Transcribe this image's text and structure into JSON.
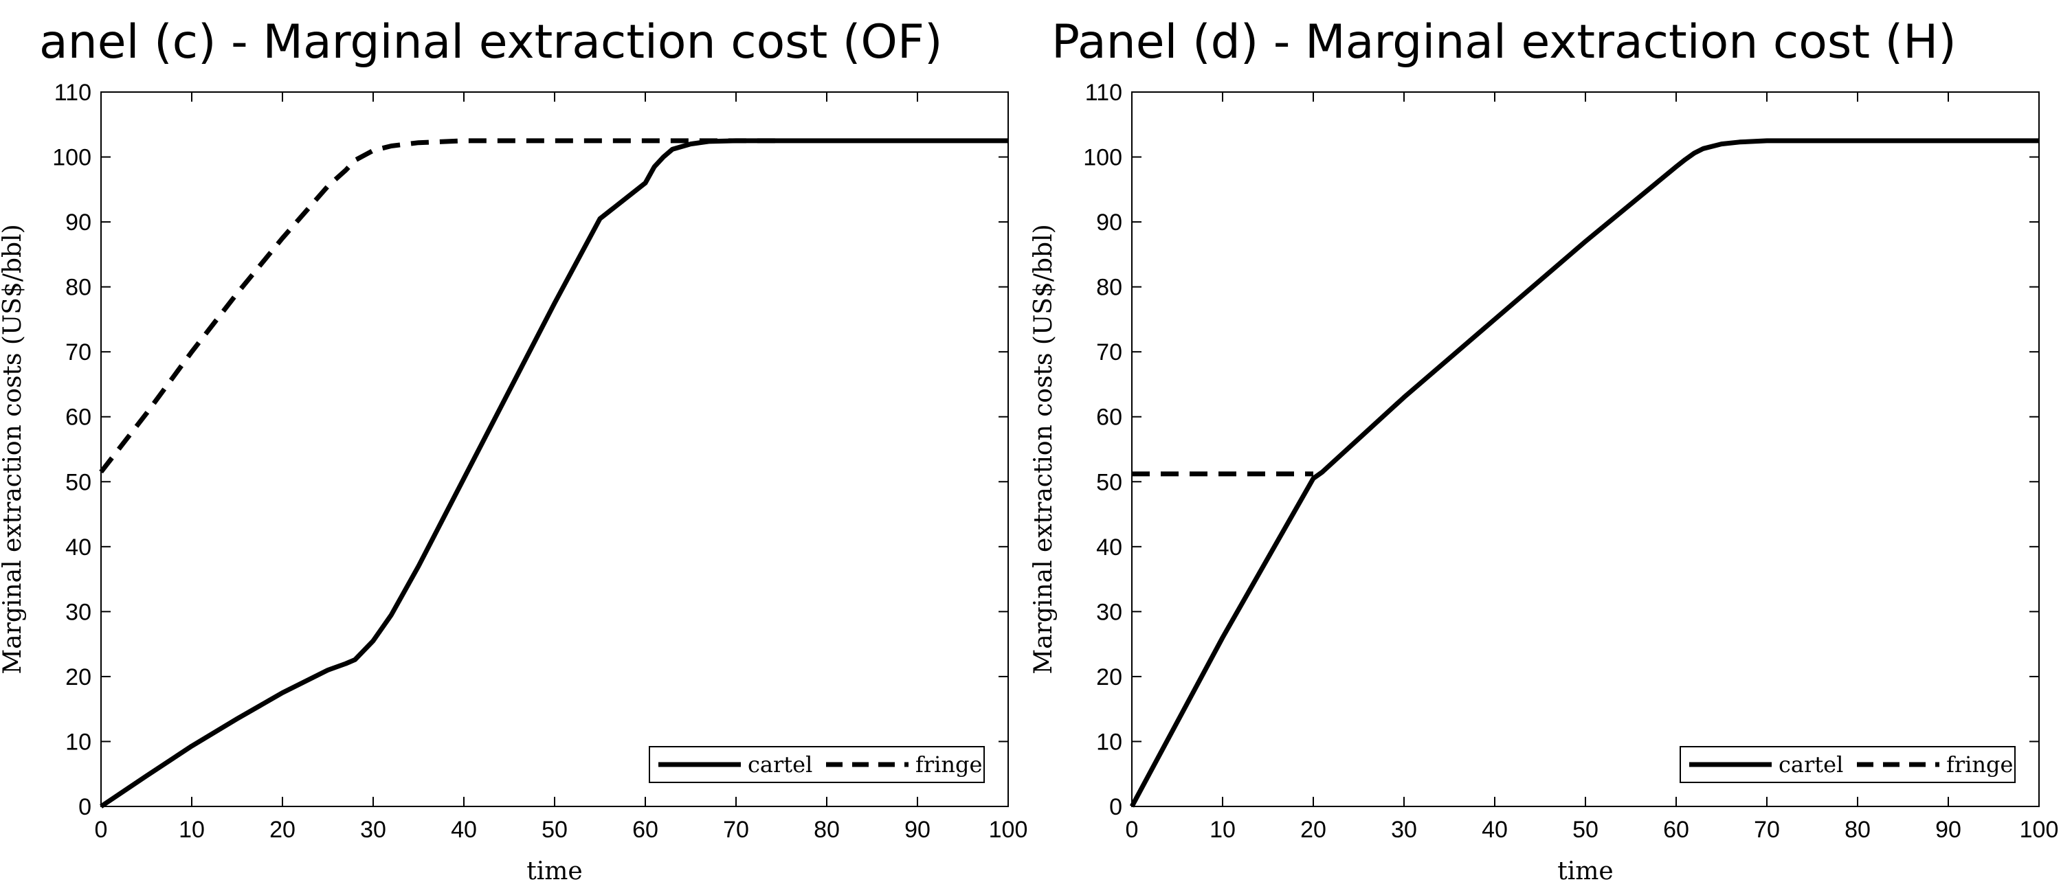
{
  "chart_data": [
    {
      "type": "line",
      "title": "anel (c) - Marginal extraction cost (OF)",
      "xlabel": "time",
      "ylabel": "Marginal extraction costs (US$/bbl)",
      "xlim": [
        0,
        100
      ],
      "ylim": [
        0,
        110
      ],
      "xticks": [
        "0",
        "10",
        "20",
        "30",
        "40",
        "50",
        "60",
        "70",
        "80",
        "90",
        "100"
      ],
      "yticks": [
        "0",
        "10",
        "20",
        "30",
        "40",
        "50",
        "60",
        "70",
        "80",
        "90",
        "100",
        "110"
      ],
      "grid": false,
      "legend_position": "bottom-right",
      "series": [
        {
          "name": "cartel",
          "style": "solid",
          "x": [
            0,
            5,
            10,
            15,
            20,
            25,
            27,
            28,
            30,
            32,
            35,
            40,
            45,
            50,
            55,
            60,
            61,
            62,
            63,
            65,
            67,
            70,
            75,
            80,
            90,
            100
          ],
          "y": [
            0,
            4.7,
            9.3,
            13.5,
            17.5,
            21,
            22,
            22.6,
            25.5,
            29.5,
            37,
            50.5,
            64,
            77.5,
            90.5,
            96,
            98.5,
            100,
            101.2,
            102,
            102.4,
            102.5,
            102.5,
            102.5,
            102.5,
            102.5
          ]
        },
        {
          "name": "fringe",
          "style": "dashed",
          "x": [
            0,
            5,
            10,
            15,
            20,
            25,
            27,
            28,
            30,
            32,
            35,
            40,
            45,
            50,
            60,
            70,
            75
          ],
          "y": [
            51.5,
            60.5,
            70,
            79,
            87.5,
            95.5,
            98,
            99.5,
            101,
            101.7,
            102.2,
            102.5,
            102.5,
            102.5,
            102.5,
            102.5,
            102.5
          ]
        }
      ]
    },
    {
      "type": "line",
      "title": "Panel (d) - Marginal extraction cost (H)",
      "xlabel": "time",
      "ylabel": "Marginal extraction costs (US$/bbl)",
      "xlim": [
        0,
        100
      ],
      "ylim": [
        0,
        110
      ],
      "xticks": [
        "0",
        "10",
        "20",
        "30",
        "40",
        "50",
        "60",
        "70",
        "80",
        "90",
        "100"
      ],
      "yticks": [
        "0",
        "10",
        "20",
        "30",
        "40",
        "50",
        "60",
        "70",
        "80",
        "90",
        "100",
        "110"
      ],
      "grid": false,
      "legend_position": "bottom-right",
      "series": [
        {
          "name": "cartel",
          "style": "solid",
          "x": [
            0,
            10,
            20,
            21,
            30,
            40,
            50,
            60,
            61,
            62,
            63,
            65,
            67,
            70,
            80,
            100
          ],
          "y": [
            0,
            26,
            50.5,
            51.5,
            63,
            75,
            87,
            98.5,
            99.6,
            100.6,
            101.3,
            102,
            102.3,
            102.5,
            102.5,
            102.5
          ]
        },
        {
          "name": "fringe",
          "style": "dashed",
          "x": [
            0,
            20
          ],
          "y": [
            51.2,
            51.2
          ]
        }
      ]
    }
  ]
}
